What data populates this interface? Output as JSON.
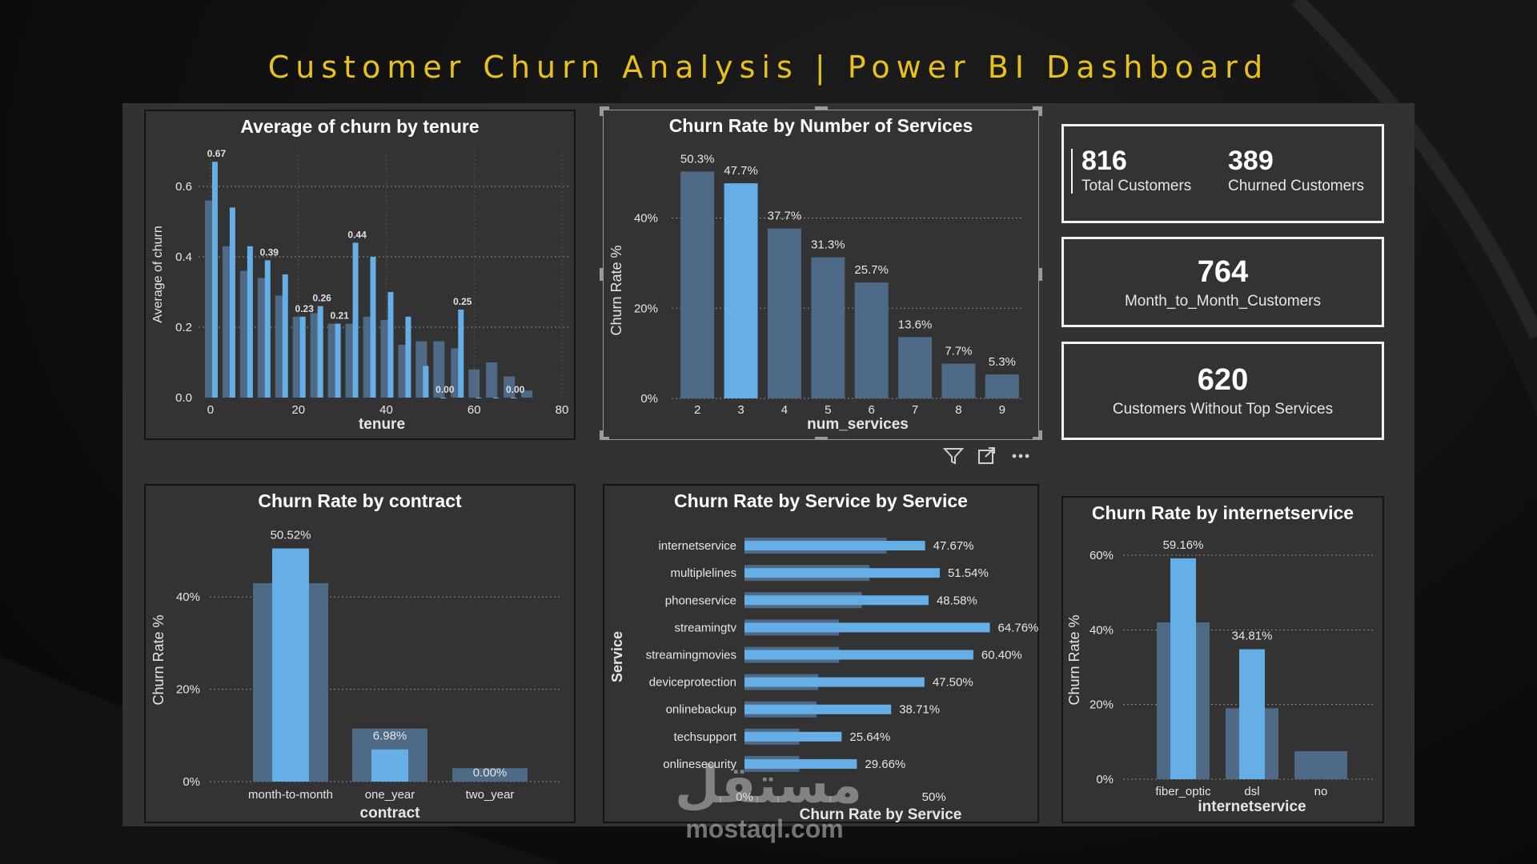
{
  "dashboard_title": "Customer Churn Analysis | Power BI Dashboard",
  "colors": {
    "accent": "#e8c21a",
    "bar_light": "#65aee6",
    "bar_dark": "#4e6a86",
    "panel": "#333333"
  },
  "kpis": {
    "total_customers": {
      "value": "816",
      "label": "Total Customers"
    },
    "churned_customers": {
      "value": "389",
      "label": "Churned Customers"
    },
    "month_to_month": {
      "value": "764",
      "label": "Month_to_Month_Customers"
    },
    "without_top_services": {
      "value": "620",
      "label": "Customers Without Top Services"
    }
  },
  "visual_toolbar": [
    "filter-icon",
    "focus-mode-icon",
    "more-options-icon"
  ],
  "watermark": {
    "arabic": "مستقل",
    "latin": "mostaql.com"
  },
  "chart_data": [
    {
      "id": "tenure",
      "type": "bar",
      "title": "Average of churn by tenure",
      "xlabel": "tenure",
      "ylabel": "Average of churn",
      "xlim": [
        -2,
        80
      ],
      "ylim": [
        0,
        0.7
      ],
      "x_ticks": [
        "0",
        "20",
        "40",
        "60",
        "80"
      ],
      "y_ticks": [
        "0.0",
        "0.2",
        "0.4",
        "0.6"
      ],
      "grid": true,
      "series": [
        {
          "x": [
            0,
            4,
            8,
            12,
            16,
            20,
            24,
            28,
            32,
            36,
            40,
            44,
            48,
            52,
            56,
            60,
            64,
            68,
            72
          ],
          "values": [
            0.56,
            0.43,
            0.36,
            0.34,
            0.29,
            0.23,
            0.24,
            0.21,
            0.21,
            0.23,
            0.22,
            0.15,
            0.16,
            0.16,
            0.14,
            0.08,
            0.1,
            0.06,
            0.02
          ]
        },
        {
          "x": [
            1,
            5,
            9,
            13,
            17,
            21,
            25,
            29,
            33,
            37,
            41,
            45,
            49,
            53,
            57,
            61,
            65,
            69
          ],
          "values": [
            0.67,
            0.54,
            0.43,
            0.39,
            0.35,
            0.23,
            0.26,
            0.21,
            0.44,
            0.4,
            0.3,
            0.23,
            0.09,
            0.0,
            0.25,
            0.0,
            0.0,
            0.0
          ]
        }
      ],
      "data_labels": [
        {
          "x": 1,
          "y": 0.67,
          "text": "0.67"
        },
        {
          "x": 13,
          "y": 0.39,
          "text": "0.39"
        },
        {
          "x": 21,
          "y": 0.23,
          "text": "0.23"
        },
        {
          "x": 25,
          "y": 0.26,
          "text": "0.26"
        },
        {
          "x": 29,
          "y": 0.21,
          "text": "0.21"
        },
        {
          "x": 33,
          "y": 0.44,
          "text": "0.44"
        },
        {
          "x": 53,
          "y": 0.0,
          "text": "0.00"
        },
        {
          "x": 57,
          "y": 0.25,
          "text": "0.25"
        },
        {
          "x": 69,
          "y": 0.0,
          "text": "0.00"
        }
      ]
    },
    {
      "id": "num_services",
      "type": "bar",
      "title": "Churn Rate by Number of Services",
      "xlabel": "num_services",
      "ylabel": "Churn Rate %",
      "ylim": [
        0,
        55
      ],
      "y_ticks": [
        "0%",
        "20%",
        "40%"
      ],
      "categories": [
        "2",
        "3",
        "4",
        "5",
        "6",
        "7",
        "8",
        "9"
      ],
      "values": [
        50.3,
        47.7,
        37.7,
        31.3,
        25.7,
        13.6,
        7.7,
        5.3
      ],
      "labels": [
        "50.3%",
        "47.7%",
        "37.7%",
        "31.3%",
        "25.7%",
        "13.6%",
        "7.7%",
        "5.3%"
      ],
      "highlighted": "3"
    },
    {
      "id": "contract",
      "type": "bar",
      "title": "Churn Rate by contract",
      "xlabel": "contract",
      "ylabel": "Churn Rate %",
      "ylim": [
        0,
        52
      ],
      "y_ticks": [
        "0%",
        "20%",
        "40%"
      ],
      "categories": [
        "month-to-month",
        "one_year",
        "two_year"
      ],
      "series": [
        {
          "name": "background",
          "values": [
            43,
            11.5,
            2.9
          ]
        },
        {
          "name": "churn",
          "values": [
            50.52,
            6.98,
            0.0
          ]
        }
      ],
      "labels": [
        "50.52%",
        "6.98%",
        "0.00%"
      ]
    },
    {
      "id": "service",
      "type": "bar",
      "orientation": "horizontal",
      "title": "Churn Rate by Service by Service",
      "xlabel": "Churn Rate by Service",
      "ylabel": "Service",
      "xlim": [
        0,
        75
      ],
      "x_ticks": [
        "0%",
        "50%"
      ],
      "categories": [
        "internetservice",
        "multiplelines",
        "phoneservice",
        "streamingtv",
        "streamingmovies",
        "deviceprotection",
        "onlinebackup",
        "techsupport",
        "onlinesecurity"
      ],
      "series": [
        {
          "name": "background",
          "values": [
            37.5,
            33,
            31,
            25,
            25,
            19.5,
            19,
            14.5,
            14.5
          ]
        },
        {
          "name": "churn",
          "values": [
            47.67,
            51.54,
            48.58,
            64.76,
            60.4,
            47.5,
            38.71,
            25.64,
            29.66
          ]
        }
      ],
      "labels": [
        "47.67%",
        "51.54%",
        "48.58%",
        "64.76%",
        "60.40%",
        "47.50%",
        "38.71%",
        "25.64%",
        "29.66%"
      ]
    },
    {
      "id": "internet",
      "type": "bar",
      "title": "Churn Rate by internetservice",
      "xlabel": "internetservice",
      "ylabel": "Churn Rate %",
      "ylim": [
        0,
        63
      ],
      "y_ticks": [
        "0%",
        "20%",
        "40%",
        "60%"
      ],
      "categories": [
        "fiber_optic",
        "dsl",
        "no"
      ],
      "series": [
        {
          "name": "background",
          "values": [
            42,
            19,
            7.5
          ]
        },
        {
          "name": "churn",
          "values": [
            59.16,
            34.81,
            null
          ]
        }
      ],
      "labels": [
        "59.16%",
        "34.81%",
        ""
      ]
    }
  ]
}
